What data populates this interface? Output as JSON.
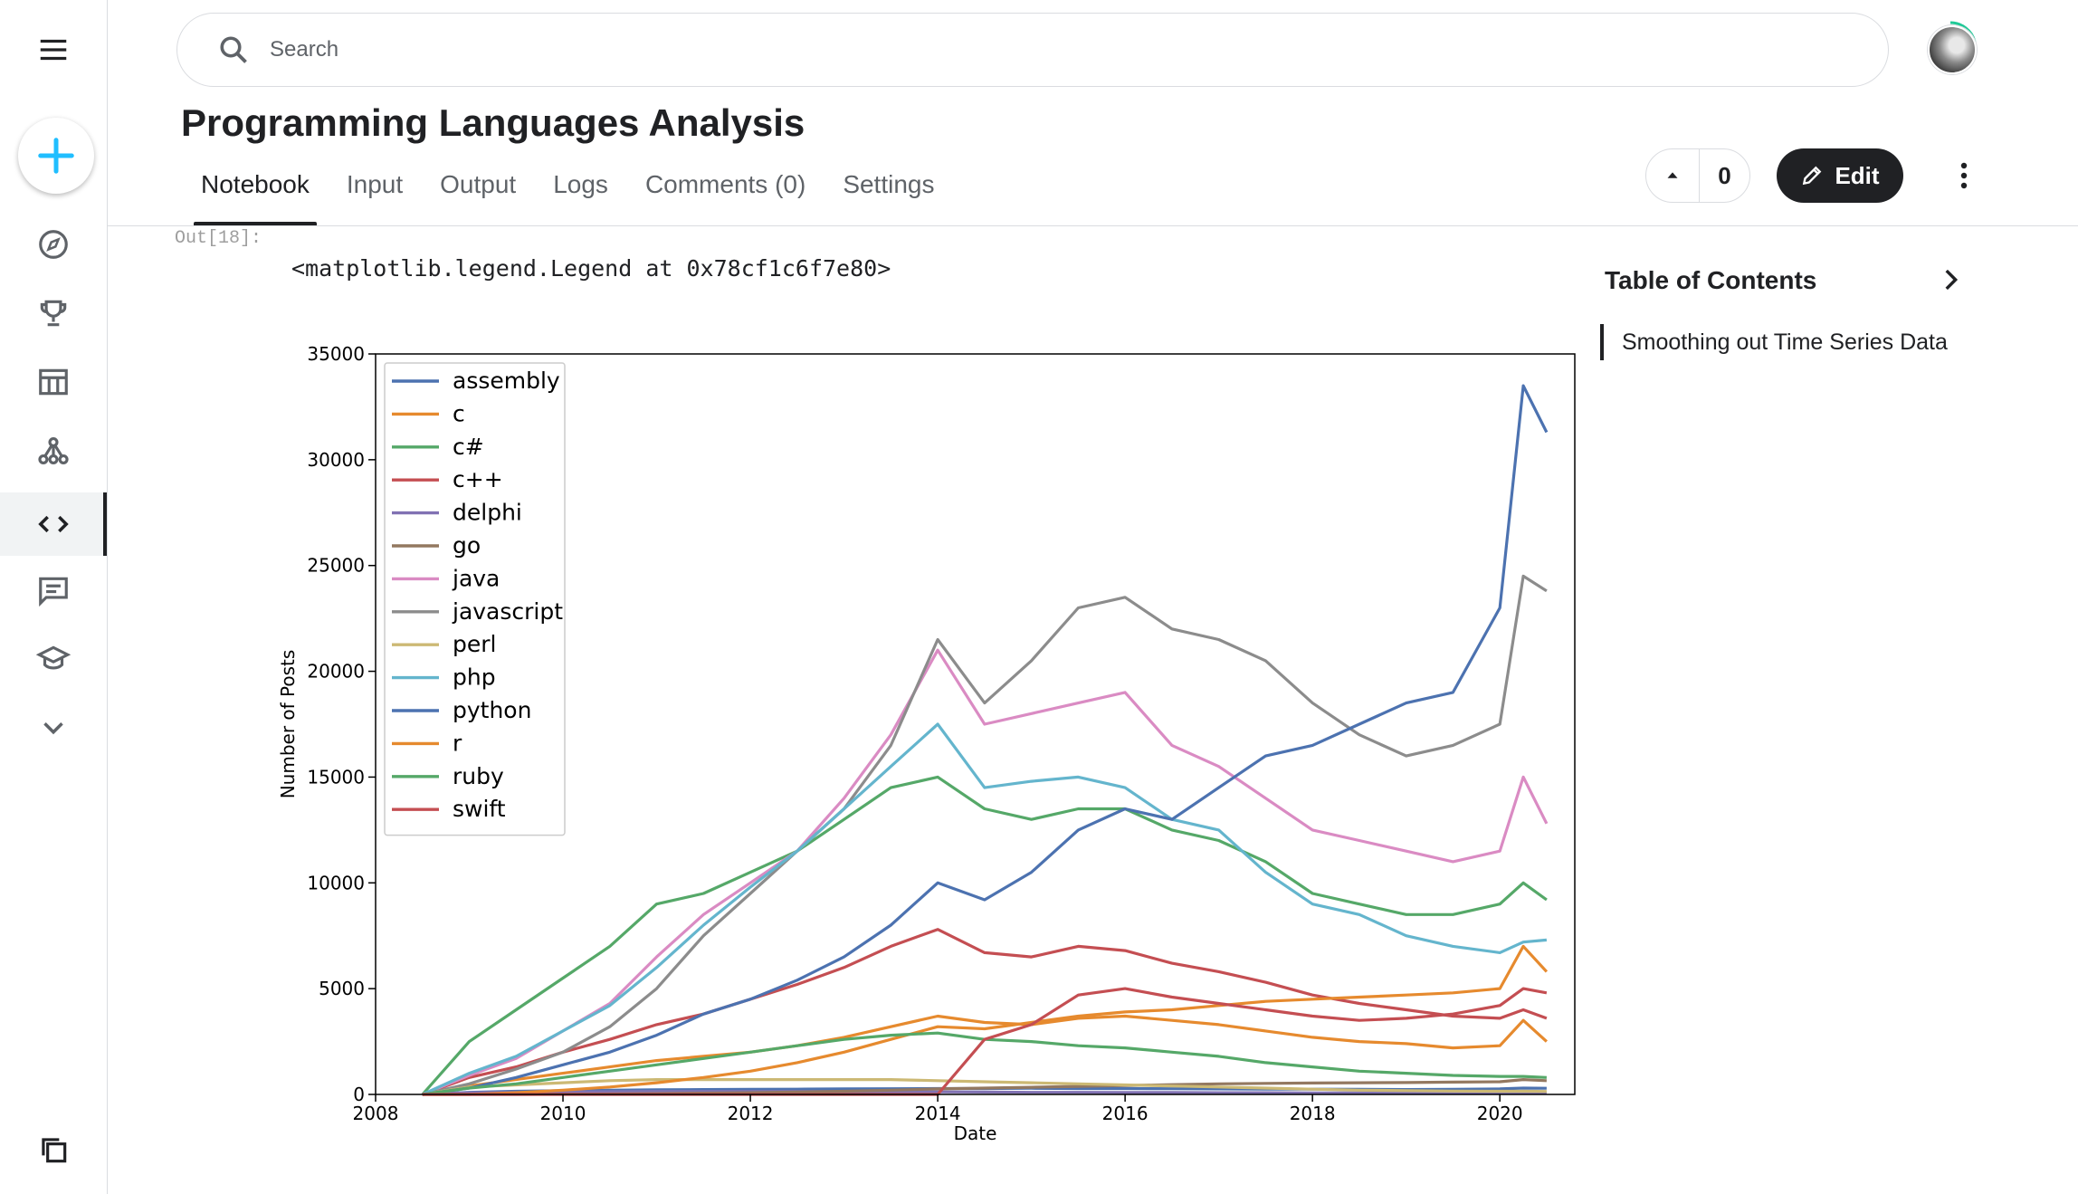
{
  "search": {
    "placeholder": "Search"
  },
  "notebook": {
    "title": "Programming Languages Analysis"
  },
  "tabs": [
    {
      "label": "Notebook",
      "active": true
    },
    {
      "label": "Input"
    },
    {
      "label": "Output"
    },
    {
      "label": "Logs"
    },
    {
      "label": "Comments (0)"
    },
    {
      "label": "Settings"
    }
  ],
  "actions": {
    "vote_count": "0",
    "edit_label": "Edit"
  },
  "cell": {
    "out_label": "Out[18]:",
    "output_text": "<matplotlib.legend.Legend at 0x78cf1c6f7e80>"
  },
  "toc": {
    "title": "Table of Contents",
    "items": [
      "Smoothing out Time Series Data"
    ]
  },
  "sidebar": {
    "icons": [
      "menu-icon",
      "create-icon",
      "explore-icon",
      "trophy-icon",
      "table-icon",
      "models-icon",
      "code-icon",
      "discussion-icon",
      "learn-icon",
      "more-icon",
      "copy-icon"
    ]
  },
  "chart_data": {
    "type": "line",
    "xlabel": "Date",
    "ylabel": "Number of Posts",
    "xlim": [
      2008,
      2020.8
    ],
    "ylim": [
      0,
      35000
    ],
    "x_ticks": [
      "2008",
      "2010",
      "2012",
      "2014",
      "2016",
      "2018",
      "2020"
    ],
    "y_ticks": [
      "0",
      "5000",
      "10000",
      "15000",
      "20000",
      "25000",
      "30000",
      "35000"
    ],
    "legend_position": "top-left",
    "grid": false,
    "x": [
      2008.5,
      2009.0,
      2009.5,
      2010.0,
      2010.5,
      2011.0,
      2011.5,
      2012.0,
      2012.5,
      2013.0,
      2013.5,
      2014.0,
      2014.5,
      2015.0,
      2015.5,
      2016.0,
      2016.5,
      2017.0,
      2017.5,
      2018.0,
      2018.5,
      2019.0,
      2019.5,
      2020.0,
      2020.25,
      2020.5
    ],
    "series": [
      {
        "name": "assembly",
        "color": "#4c72b0",
        "values": [
          0,
          100,
          150,
          180,
          200,
          220,
          230,
          240,
          250,
          260,
          270,
          280,
          280,
          290,
          280,
          280,
          270,
          260,
          250,
          250,
          240,
          230,
          240,
          260,
          300,
          290
        ]
      },
      {
        "name": "c",
        "color": "#e68a2e",
        "values": [
          0,
          400,
          700,
          1000,
          1300,
          1600,
          1800,
          2000,
          2300,
          2700,
          3200,
          3700,
          3400,
          3300,
          3600,
          3700,
          3500,
          3300,
          3000,
          2700,
          2500,
          2400,
          2200,
          2300,
          3500,
          2500
        ]
      },
      {
        "name": "c#",
        "color": "#55a868",
        "values": [
          0,
          2500,
          4000,
          5500,
          7000,
          9000,
          9500,
          10500,
          11500,
          13000,
          14500,
          15000,
          13500,
          13000,
          13500,
          13500,
          12500,
          12000,
          11000,
          9500,
          9000,
          8500,
          8500,
          9000,
          10000,
          9200
        ]
      },
      {
        "name": "c++",
        "color": "#c44e52",
        "values": [
          0,
          800,
          1300,
          2000,
          2600,
          3300,
          3800,
          4500,
          5200,
          6000,
          7000,
          7800,
          6700,
          6500,
          7000,
          6800,
          6200,
          5800,
          5300,
          4700,
          4300,
          4000,
          3700,
          3600,
          4000,
          3600
        ]
      },
      {
        "name": "delphi",
        "color": "#8172b3",
        "values": [
          0,
          80,
          100,
          120,
          130,
          140,
          140,
          140,
          140,
          130,
          130,
          120,
          110,
          100,
          100,
          90,
          90,
          80,
          80,
          70,
          70,
          60,
          60,
          60,
          60,
          60
        ]
      },
      {
        "name": "go",
        "color": "#937860",
        "values": [
          0,
          0,
          0,
          10,
          20,
          40,
          60,
          80,
          110,
          150,
          200,
          260,
          300,
          340,
          380,
          420,
          460,
          500,
          520,
          540,
          550,
          560,
          580,
          600,
          700,
          650
        ]
      },
      {
        "name": "java",
        "color": "#da8bc3",
        "values": [
          0,
          900,
          1700,
          3000,
          4300,
          6500,
          8500,
          10000,
          11500,
          14000,
          17000,
          21000,
          17500,
          18000,
          18500,
          19000,
          16500,
          15500,
          14000,
          12500,
          12000,
          11500,
          11000,
          11500,
          15000,
          12800
        ]
      },
      {
        "name": "javascript",
        "color": "#8c8c8c",
        "values": [
          0,
          500,
          1200,
          2000,
          3200,
          5000,
          7500,
          9500,
          11500,
          13500,
          16500,
          21500,
          18500,
          20500,
          23000,
          23500,
          22000,
          21500,
          20500,
          18500,
          17000,
          16000,
          16500,
          17500,
          24500,
          23800
        ]
      },
      {
        "name": "perl",
        "color": "#ccb974",
        "values": [
          0,
          350,
          450,
          550,
          650,
          700,
          700,
          700,
          700,
          700,
          700,
          650,
          600,
          550,
          500,
          450,
          400,
          350,
          300,
          250,
          200,
          180,
          160,
          150,
          150,
          140
        ]
      },
      {
        "name": "php",
        "color": "#64b5cd",
        "values": [
          0,
          1000,
          1800,
          3000,
          4200,
          6000,
          8000,
          9800,
          11500,
          13500,
          15500,
          17500,
          14500,
          14800,
          15000,
          14500,
          13000,
          12500,
          10500,
          9000,
          8500,
          7500,
          7000,
          6700,
          7200,
          7300
        ]
      },
      {
        "name": "python",
        "color": "#4c72b0",
        "values": [
          0,
          300,
          800,
          1400,
          2000,
          2800,
          3800,
          4500,
          5400,
          6500,
          8000,
          10000,
          9200,
          10500,
          12500,
          13500,
          13000,
          14500,
          16000,
          16500,
          17500,
          18500,
          19000,
          23000,
          33500,
          31300
        ]
      },
      {
        "name": "r",
        "color": "#e68a2e",
        "values": [
          0,
          0,
          80,
          200,
          350,
          550,
          800,
          1100,
          1500,
          2000,
          2600,
          3200,
          3100,
          3400,
          3700,
          3900,
          4000,
          4200,
          4400,
          4500,
          4600,
          4700,
          4800,
          5000,
          7000,
          5800
        ]
      },
      {
        "name": "ruby",
        "color": "#55a868",
        "values": [
          0,
          300,
          500,
          800,
          1100,
          1400,
          1700,
          2000,
          2300,
          2600,
          2800,
          2900,
          2600,
          2500,
          2300,
          2200,
          2000,
          1800,
          1500,
          1300,
          1100,
          1000,
          900,
          850,
          850,
          800
        ]
      },
      {
        "name": "swift",
        "color": "#c44e52",
        "values": [
          0,
          0,
          0,
          0,
          0,
          0,
          0,
          0,
          0,
          0,
          0,
          0,
          2600,
          3300,
          4700,
          5000,
          4600,
          4300,
          4000,
          3700,
          3500,
          3600,
          3800,
          4200,
          5000,
          4800
        ]
      }
    ]
  }
}
